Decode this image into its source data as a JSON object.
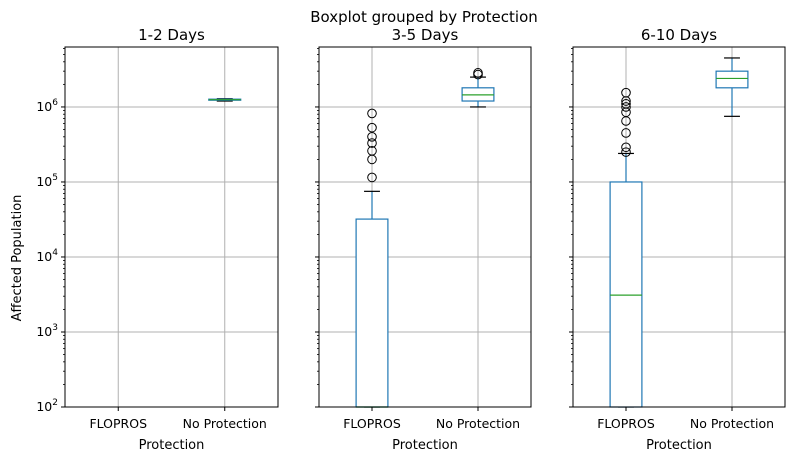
{
  "chart_data": {
    "type": "boxplot",
    "suptitle": "Boxplot grouped by Protection",
    "ylabel": "Affected Population",
    "yscale": "log",
    "ylim": [
      100,
      6300000
    ],
    "yticks": [
      {
        "value": 100,
        "base": "10",
        "exp": "2"
      },
      {
        "value": 1000,
        "base": "10",
        "exp": "3"
      },
      {
        "value": 10000,
        "base": "10",
        "exp": "4"
      },
      {
        "value": 100000,
        "base": "10",
        "exp": "5"
      },
      {
        "value": 1000000,
        "base": "10",
        "exp": "6"
      }
    ],
    "grid": true,
    "categories": [
      "FLOPROS",
      "No Protection"
    ],
    "panels": [
      {
        "title": "1-2 Days",
        "xlabel": "Protection",
        "boxes": [
          null,
          {
            "whislo": 1200000,
            "q1": 1230000,
            "med": 1250000,
            "q3": 1270000,
            "whishi": 1290000,
            "fliers": []
          }
        ]
      },
      {
        "title": "3-5 Days",
        "xlabel": "Protection",
        "boxes": [
          {
            "whislo": 100,
            "q1": 100,
            "med": 100,
            "q3": 32000,
            "whishi": 75000,
            "fliers": [
              115000,
              200000,
              260000,
              330000,
              400000,
              530000,
              820000
            ]
          },
          {
            "whislo": 1000000,
            "q1": 1200000,
            "med": 1450000,
            "q3": 1800000,
            "whishi": 2500000,
            "fliers": [
              2700000,
              2850000
            ]
          }
        ]
      },
      {
        "title": "6-10 Days",
        "xlabel": "Protection",
        "boxes": [
          {
            "whislo": 100,
            "q1": 100,
            "med": 3100,
            "q3": 100000,
            "whishi": 240000,
            "fliers": [
              250000,
              290000,
              450000,
              650000,
              850000,
              1000000,
              1100000,
              1200000,
              1550000
            ]
          },
          {
            "whislo": 750000,
            "q1": 1800000,
            "med": 2400000,
            "q3": 3000000,
            "whishi": 4500000,
            "fliers": []
          }
        ]
      }
    ]
  }
}
